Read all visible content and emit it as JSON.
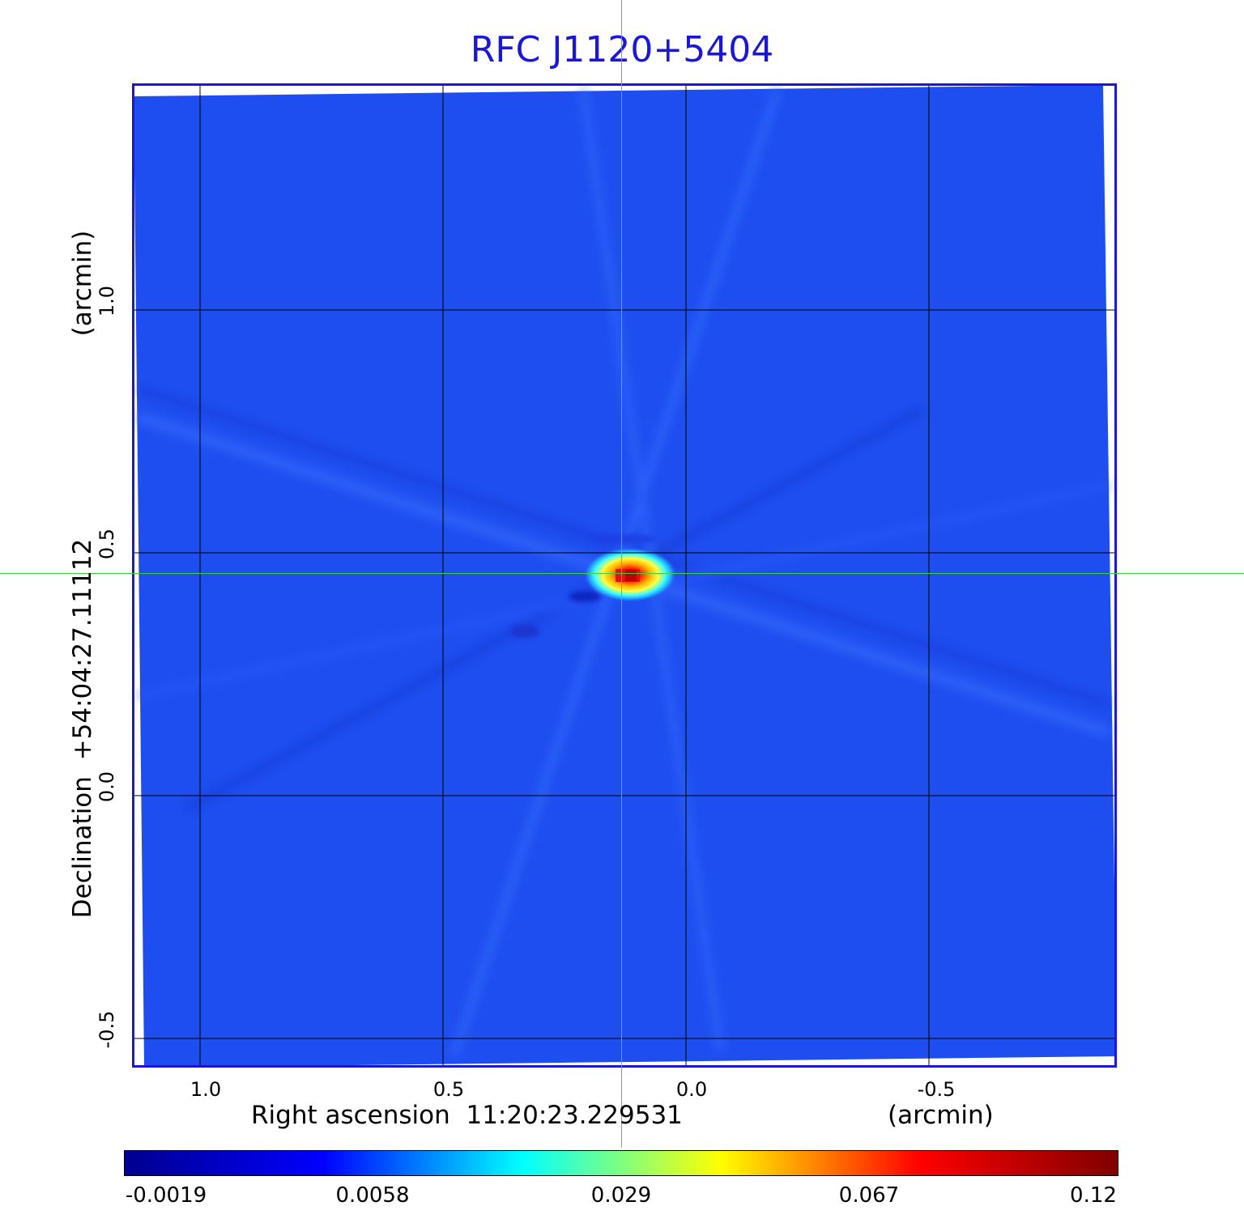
{
  "title": "RFC J1120+5404",
  "x_axis": {
    "label": "Right ascension  11:20:23.229531",
    "unit": "(arcmin)",
    "ticks": [
      "1.0",
      "0.5",
      "0.0",
      "-0.5"
    ]
  },
  "y_axis": {
    "label": "Declination  +54:04:27.11112",
    "unit": "(arcmin)",
    "ticks": [
      "1.0",
      "0.5",
      "0.0",
      "-0.5"
    ]
  },
  "colorbar": {
    "labels": [
      "-0.0019",
      "0.0058",
      "0.029",
      "0.067",
      "0.12"
    ],
    "colors": [
      "#00008f",
      "#0000ff",
      "#00ffff",
      "#ffff00",
      "#ff0000",
      "#800000"
    ]
  },
  "image": {
    "background_color": "#1f4ef0",
    "source_peak_color": "#e0140f",
    "crosshair_color": "#3cd23c",
    "frame_color": "#1a17d9"
  }
}
